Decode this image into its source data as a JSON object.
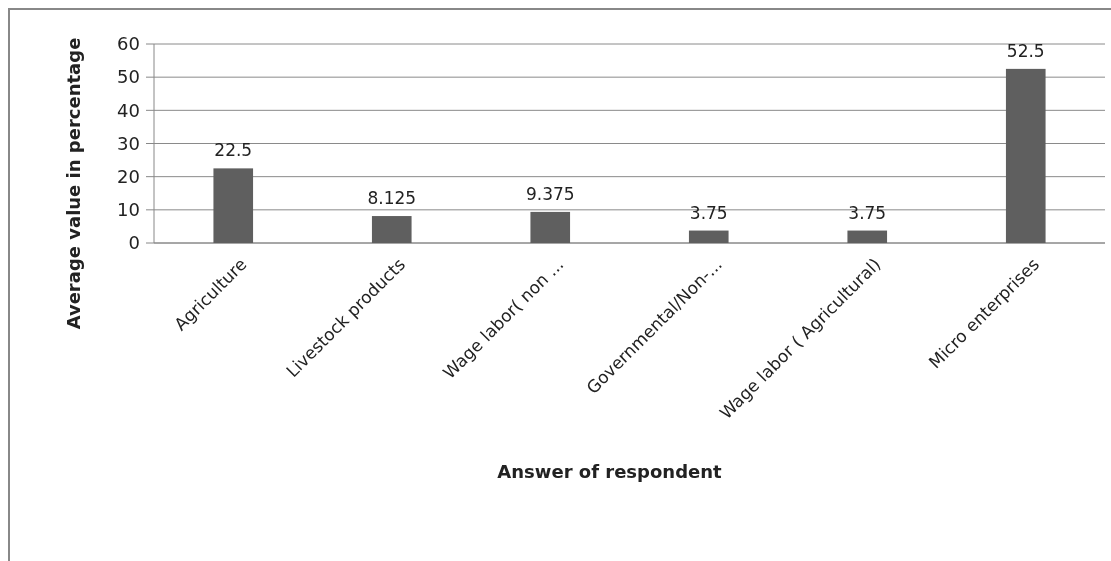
{
  "chart_data": {
    "type": "bar",
    "xlabel": "Answer of respondent",
    "ylabel": "Average value in percentage",
    "categories": [
      "Agriculture",
      "Livestock products",
      "Wage labor( non ...",
      "Governmental/Non-...",
      "Wage labor ( Agricultural)",
      "Micro enterprises"
    ],
    "values": [
      22.5,
      8.125,
      9.375,
      3.75,
      3.75,
      52.5
    ],
    "color": "#5f5f5f",
    "ylim": [
      0,
      60
    ],
    "yticks": [
      0,
      10,
      20,
      30,
      40,
      50,
      60
    ],
    "grid": "y",
    "data_labels": true
  }
}
